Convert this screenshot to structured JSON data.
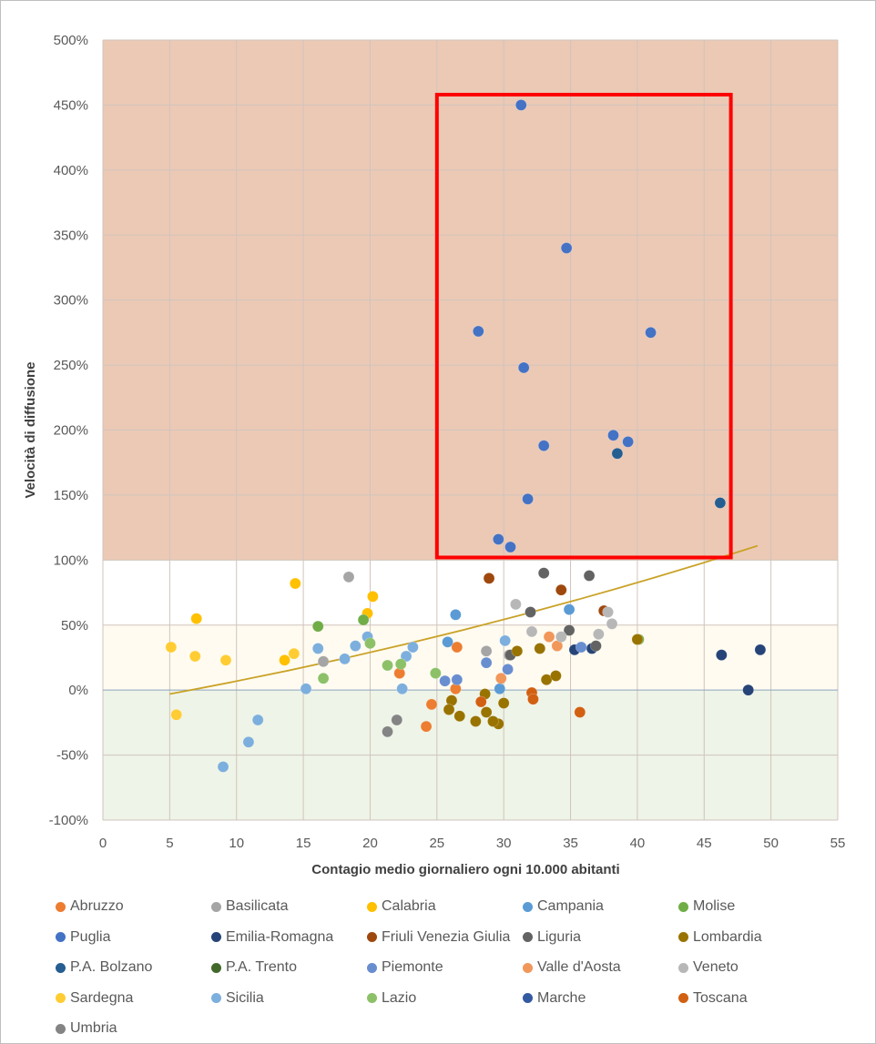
{
  "chart_data": {
    "type": "scatter",
    "xlabel": "Contagio medio giornaliero ogni 10.000 abitanti",
    "ylabel": "Velocità di diffusione",
    "xlim": [
      0,
      55
    ],
    "ylim": [
      -100,
      500
    ],
    "x_ticks": [
      "0",
      "5",
      "10",
      "15",
      "20",
      "25",
      "30",
      "35",
      "40",
      "45",
      "50",
      "55"
    ],
    "y_ticks": [
      "-100%",
      "-50%",
      "0%",
      "50%",
      "100%",
      "150%",
      "200%",
      "250%",
      "300%",
      "350%",
      "400%",
      "450%",
      "500%"
    ],
    "zones": [
      {
        "name": "red",
        "from": 100,
        "to": 500,
        "color": "#ecc9b5"
      },
      {
        "name": "white",
        "from": 50,
        "to": 100,
        "color": "#ffffff"
      },
      {
        "name": "yellow",
        "from": 0,
        "to": 50,
        "color": "#fffbf0"
      },
      {
        "name": "green",
        "from": -100,
        "to": 0,
        "color": "#eef4e7"
      }
    ],
    "highlight_box": {
      "x": [
        25,
        47
      ],
      "y": [
        102,
        458
      ],
      "color": "#ff0000"
    },
    "trendline": {
      "x": [
        5,
        49
      ],
      "y": [
        -3,
        111
      ],
      "color": "#c9a227"
    },
    "series": [
      {
        "name": "Abruzzo",
        "color": "#ed7d31",
        "points": [
          [
            22.2,
            13
          ],
          [
            24.2,
            -28
          ],
          [
            24.6,
            -11
          ],
          [
            26.5,
            33
          ],
          [
            26.4,
            1
          ]
        ]
      },
      {
        "name": "Basilicata",
        "color": "#a5a5a5",
        "points": [
          [
            16.5,
            22
          ],
          [
            18.4,
            87
          ],
          [
            28.7,
            30
          ],
          [
            30.4,
            27
          ]
        ]
      },
      {
        "name": "Calabria",
        "color": "#ffc000",
        "points": [
          [
            14.4,
            82
          ],
          [
            19.8,
            59
          ],
          [
            20.2,
            72
          ],
          [
            7.0,
            55
          ],
          [
            13.6,
            23
          ]
        ]
      },
      {
        "name": "Campania",
        "color": "#5b9bd5",
        "points": [
          [
            26.4,
            58
          ],
          [
            34.9,
            62
          ],
          [
            29.7,
            1
          ],
          [
            25.8,
            37
          ]
        ]
      },
      {
        "name": "Molise",
        "color": "#70ad47",
        "points": [
          [
            16.1,
            49
          ],
          [
            19.5,
            54
          ],
          [
            40.1,
            39
          ]
        ]
      },
      {
        "name": "Puglia",
        "color": "#4472c4",
        "points": [
          [
            31.3,
            450
          ],
          [
            34.7,
            340
          ],
          [
            41.0,
            275
          ],
          [
            28.1,
            276
          ],
          [
            31.5,
            248
          ],
          [
            38.2,
            196
          ],
          [
            39.3,
            191
          ],
          [
            33.0,
            188
          ],
          [
            31.8,
            147
          ],
          [
            29.6,
            116
          ],
          [
            30.5,
            110
          ]
        ]
      },
      {
        "name": "Emilia-Romagna",
        "color": "#264478",
        "points": [
          [
            46.3,
            27
          ],
          [
            49.2,
            31
          ],
          [
            48.3,
            0
          ],
          [
            35.3,
            31
          ],
          [
            36.6,
            32
          ]
        ]
      },
      {
        "name": "Friuli Venezia Giulia",
        "color": "#9e480e",
        "points": [
          [
            28.9,
            86
          ],
          [
            34.3,
            77
          ],
          [
            37.5,
            61
          ]
        ]
      },
      {
        "name": "Liguria",
        "color": "#636363",
        "points": [
          [
            32.0,
            60
          ],
          [
            33.0,
            90
          ],
          [
            36.4,
            88
          ],
          [
            30.5,
            27
          ],
          [
            34.9,
            46
          ],
          [
            36.9,
            34
          ]
        ]
      },
      {
        "name": "Lombardia",
        "color": "#997300",
        "points": [
          [
            27.9,
            -24
          ],
          [
            28.7,
            -17
          ],
          [
            29.6,
            -26
          ],
          [
            26.1,
            -8
          ],
          [
            26.7,
            -20
          ],
          [
            25.9,
            -15
          ],
          [
            29.2,
            -24
          ],
          [
            30.0,
            -10
          ],
          [
            28.6,
            -3
          ],
          [
            32.7,
            32
          ],
          [
            33.2,
            8
          ],
          [
            33.9,
            11
          ],
          [
            31.0,
            30
          ],
          [
            40.0,
            39
          ]
        ]
      },
      {
        "name": "P.A. Bolzano",
        "color": "#255e91",
        "points": [
          [
            46.2,
            144
          ],
          [
            38.5,
            182
          ]
        ]
      },
      {
        "name": "P.A. Trento",
        "color": "#43682b",
        "points": []
      },
      {
        "name": "Piemonte",
        "color": "#698ed0",
        "points": [
          [
            26.5,
            8
          ],
          [
            25.6,
            7
          ],
          [
            28.7,
            21
          ],
          [
            30.3,
            16
          ],
          [
            35.8,
            33
          ]
        ]
      },
      {
        "name": "Valle d'Aosta",
        "color": "#f1975a",
        "points": [
          [
            29.8,
            9
          ],
          [
            33.4,
            41
          ],
          [
            34.0,
            34
          ]
        ]
      },
      {
        "name": "Veneto",
        "color": "#b7b7b7",
        "points": [
          [
            30.9,
            66
          ],
          [
            32.1,
            45
          ],
          [
            34.3,
            41
          ],
          [
            37.1,
            43
          ],
          [
            37.8,
            60
          ],
          [
            38.1,
            51
          ]
        ]
      },
      {
        "name": "Sardegna",
        "color": "#ffcd33",
        "points": [
          [
            5.1,
            33
          ],
          [
            6.9,
            26
          ],
          [
            9.2,
            23
          ],
          [
            14.3,
            28
          ],
          [
            5.5,
            -19
          ]
        ]
      },
      {
        "name": "Sicilia",
        "color": "#7cafdd",
        "points": [
          [
            9.0,
            -59
          ],
          [
            10.9,
            -40
          ],
          [
            11.6,
            -23
          ],
          [
            15.2,
            1
          ],
          [
            16.1,
            32
          ],
          [
            18.1,
            24
          ],
          [
            18.9,
            34
          ],
          [
            19.8,
            41
          ],
          [
            22.4,
            1
          ],
          [
            22.7,
            26
          ],
          [
            23.2,
            33
          ],
          [
            30.1,
            38
          ]
        ]
      },
      {
        "name": "Lazio",
        "color": "#8cc168",
        "points": [
          [
            16.5,
            9
          ],
          [
            20.0,
            36
          ],
          [
            21.3,
            19
          ],
          [
            22.3,
            20
          ],
          [
            24.9,
            13
          ]
        ]
      },
      {
        "name": "Marche",
        "color": "#335aa1",
        "points": []
      },
      {
        "name": "Toscana",
        "color": "#d26012",
        "points": [
          [
            28.3,
            -9
          ],
          [
            32.1,
            -2
          ],
          [
            32.2,
            -7
          ],
          [
            35.7,
            -17
          ]
        ]
      },
      {
        "name": "Umbria",
        "color": "#848484",
        "points": [
          [
            21.3,
            -32
          ],
          [
            22.0,
            -23
          ]
        ]
      }
    ]
  },
  "legend_columns": 5
}
